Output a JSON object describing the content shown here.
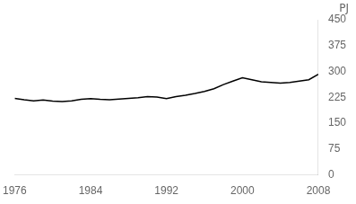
{
  "chart_data": {
    "type": "line",
    "x": [
      1976,
      1977,
      1978,
      1979,
      1980,
      1981,
      1982,
      1983,
      1984,
      1985,
      1986,
      1987,
      1988,
      1989,
      1990,
      1991,
      1992,
      1993,
      1994,
      1995,
      1996,
      1997,
      1998,
      1999,
      2000,
      2001,
      2002,
      2003,
      2004,
      2005,
      2006,
      2007,
      2008
    ],
    "values": [
      222,
      218,
      215,
      217,
      214,
      213,
      215,
      219,
      221,
      219,
      218,
      220,
      222,
      224,
      227,
      226,
      221,
      227,
      231,
      236,
      242,
      250,
      262,
      272,
      282,
      276,
      270,
      268,
      266,
      268,
      272,
      276,
      292
    ],
    "color": "#000000",
    "ylabel": "PJ",
    "xlim": [
      1976,
      2008
    ],
    "xticks": [
      1976,
      1984,
      1992,
      2000,
      2008
    ],
    "ylim": [
      0,
      450
    ],
    "yticks": [
      0,
      75,
      150,
      225,
      300,
      375,
      450
    ],
    "grid": false
  }
}
